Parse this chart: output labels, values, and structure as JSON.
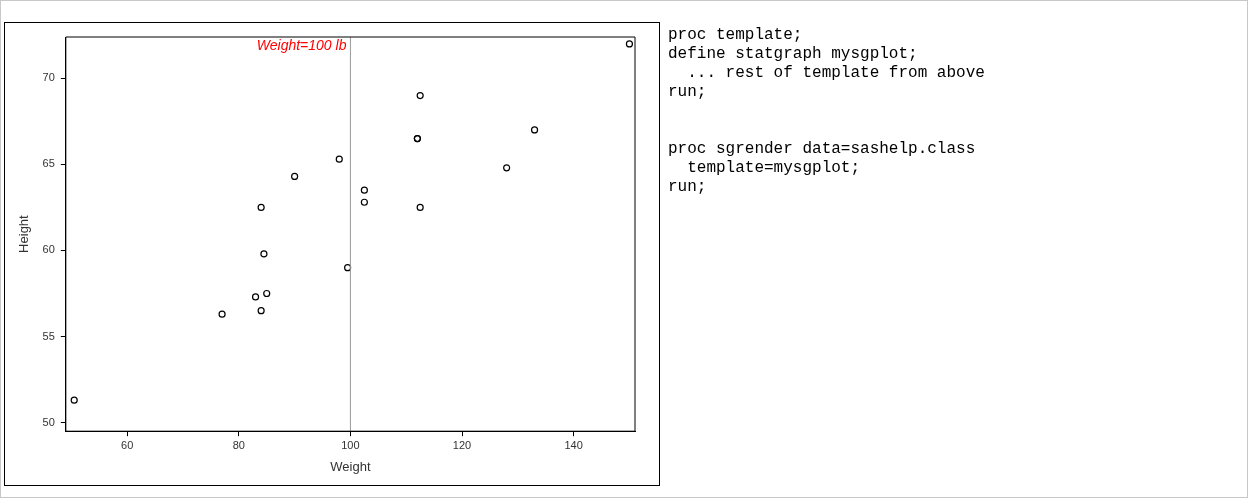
{
  "chart_data": [
    {
      "type": "scatter",
      "xlabel": "Weight",
      "ylabel": "Height",
      "marker": "circle",
      "grid": false,
      "legend": false,
      "xlim": [
        49,
        151
      ],
      "xticks": [
        60,
        80,
        100,
        120,
        140
      ],
      "ylim": [
        49.5,
        72.4
      ],
      "yticks": [
        50,
        55,
        60,
        65,
        70
      ],
      "x": [
        112.5,
        84.0,
        98.0,
        102.5,
        102.5,
        83.0,
        84.5,
        112.5,
        84.0,
        99.5,
        50.5,
        90.0,
        77.0,
        112.0,
        150.0,
        128.0,
        133.0,
        85.0,
        112.0
      ],
      "series": [
        {
          "color": "#000000",
          "values": [
            69.0,
            56.5,
            65.3,
            62.8,
            63.5,
            57.3,
            59.8,
            62.5,
            62.5,
            59.0,
            51.3,
            64.3,
            56.3,
            66.5,
            72.0,
            64.8,
            67.0,
            57.5,
            66.5
          ]
        }
      ],
      "ref_lines": [
        {
          "axis": "x",
          "value": 100,
          "label": "Weight=100 lb",
          "color": "#999999"
        }
      ]
    },
    {
      "type": "other",
      "annotations": [
        "proc template;\ndefine statgraph mysgplot;\n  ... rest of template from above\nrun;",
        "proc sgrender data=sashelp.class\n  template=mysgplot;\nrun;"
      ]
    }
  ]
}
